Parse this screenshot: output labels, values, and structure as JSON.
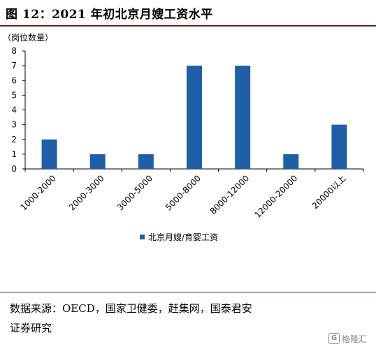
{
  "header": {
    "title": "图 12：2021 年初北京月嫂工资水平"
  },
  "chart_data": {
    "type": "bar",
    "title": "",
    "ylabel": "（岗位数量）",
    "xlabel": "",
    "categories": [
      "1000-2000",
      "2000-3000",
      "3000-5000",
      "5000-8000",
      "8000-12000",
      "12000-20000",
      "20000以上"
    ],
    "series": [
      {
        "name": "北京月嫂/育婴工资",
        "values": [
          2,
          1,
          1,
          7,
          7,
          1,
          3
        ]
      }
    ],
    "ylim": [
      0,
      8
    ],
    "yticks": [
      0,
      1,
      2,
      3,
      4,
      5,
      6,
      7,
      8
    ],
    "grid": false,
    "legend": "bottom-center",
    "bar_color": "#1f5fa8"
  },
  "footer": {
    "source_line1": "数据来源：OECD，国家卫健委，赶集网，国泰君安",
    "source_line2": "证券研究"
  },
  "watermark": {
    "text": "格隆汇",
    "mark": "G"
  }
}
